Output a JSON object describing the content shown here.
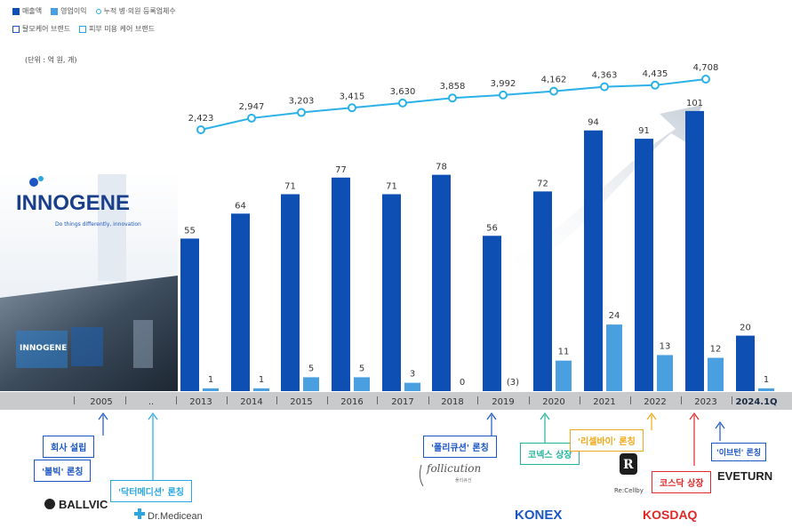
{
  "legend": {
    "revenue": "매출액",
    "operating_profit": "영업이익",
    "cumulative_hospitals": "누적 병·의원 등록업체수",
    "hair_brand": "탈모케어 브랜드",
    "skin_brand": "피부 미용 케어 브랜드"
  },
  "unit_label": "(단위 : 억 원, 개)",
  "company": {
    "name": "INNOGENE",
    "tagline": "Do things differently, innovation",
    "sign": "INNOGENE"
  },
  "colors": {
    "revenue_bar": "#0e4fb3",
    "profit_bar": "#4a9fe0",
    "line": "#2bb1e8",
    "axis_band": "#c9cacc"
  },
  "chart_data": {
    "type": "bar",
    "categories": [
      "2005",
      "..",
      "2013",
      "2014",
      "2015",
      "2016",
      "2017",
      "2018",
      "2019",
      "2020",
      "2021",
      "2022",
      "2023",
      "2024.1Q"
    ],
    "series": [
      {
        "name": "매출액",
        "values": [
          null,
          null,
          55,
          64,
          71,
          77,
          71,
          78,
          56,
          72,
          94,
          91,
          101,
          20
        ]
      },
      {
        "name": "영업이익",
        "values": [
          null,
          null,
          1,
          1,
          5,
          5,
          3,
          0,
          -3,
          11,
          24,
          13,
          12,
          1
        ]
      },
      {
        "name": "누적 병·의원 등록업체수",
        "type": "line",
        "values": [
          null,
          null,
          2423,
          2947,
          3203,
          3415,
          3630,
          3858,
          3992,
          4162,
          4363,
          4435,
          4708,
          null
        ]
      }
    ],
    "value_labels": {
      "revenue": [
        "",
        "",
        "55",
        "64",
        "71",
        "77",
        "71",
        "78",
        "56",
        "72",
        "94",
        "91",
        "101",
        "20"
      ],
      "profit": [
        "",
        "",
        "1",
        "1",
        "5",
        "5",
        "3",
        "0",
        "(3)",
        "11",
        "24",
        "13",
        "12",
        "1"
      ],
      "line": [
        "",
        "",
        "2,423",
        "2,947",
        "3,203",
        "3,415",
        "3,630",
        "3,858",
        "3,992",
        "4,162",
        "4,363",
        "4,435",
        "4,708",
        ""
      ]
    },
    "title": "",
    "xlabel": "",
    "ylabel": ""
  },
  "milestones": [
    {
      "text": "회사 설립",
      "color": "#1a56c4"
    },
    {
      "text": "'볼빅' 론칭",
      "color": "#1a56c4"
    },
    {
      "text": "'닥터메디션' 론칭",
      "color": "#2aa7e0"
    },
    {
      "text": "'폴리큐션' 론칭",
      "color": "#1a56c4"
    },
    {
      "text": "코넥스 상장",
      "color": "#22b39a"
    },
    {
      "text": "'리셀바이' 론칭",
      "color": "#f0a818"
    },
    {
      "text": "코스닥 상장",
      "color": "#e02828"
    },
    {
      "text": "'이브턴' 론칭",
      "color": "#1a56c4"
    }
  ],
  "logos": {
    "ballvic": "BALLVIC",
    "drmedicean": "Dr.Medicean",
    "follicution": "follicution",
    "follicution_sub": "폴리큐션",
    "konex": "KONEX",
    "recellby": "Re:Cellby",
    "kosdaq": "KOSDAQ",
    "eveturn": "EVETURN"
  }
}
